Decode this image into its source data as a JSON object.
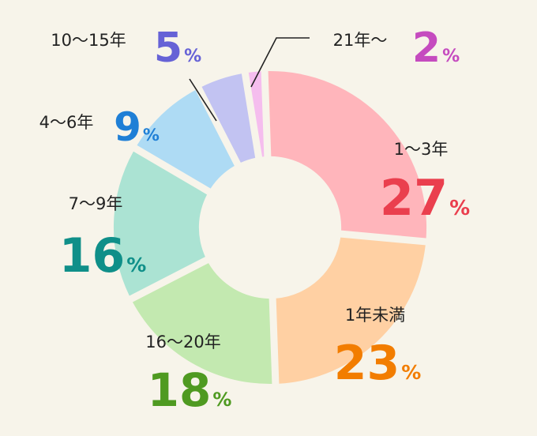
{
  "chart_data": {
    "type": "pie",
    "donut": true,
    "unit": "%",
    "categories": [
      "1〜3年",
      "1年未満",
      "16〜20年",
      "7〜9年",
      "4〜6年",
      "10〜15年",
      "21年〜"
    ],
    "values": [
      27,
      23,
      18,
      16,
      9,
      5,
      2
    ],
    "slice_colors": [
      "#ffb5bb",
      "#ffd0a3",
      "#c3e9b0",
      "#abe3d3",
      "#aedbf4",
      "#c2c3f2",
      "#f5bdee"
    ],
    "label_colors": [
      "#ea3f4e",
      "#f27d00",
      "#4f9a21",
      "#0f8f89",
      "#1f7fd6",
      "#6662d6",
      "#c54bbf"
    ],
    "percent_texts": [
      "27",
      "23",
      "18",
      "16",
      "9",
      "5",
      "2"
    ],
    "background": "#f7f4ea"
  }
}
